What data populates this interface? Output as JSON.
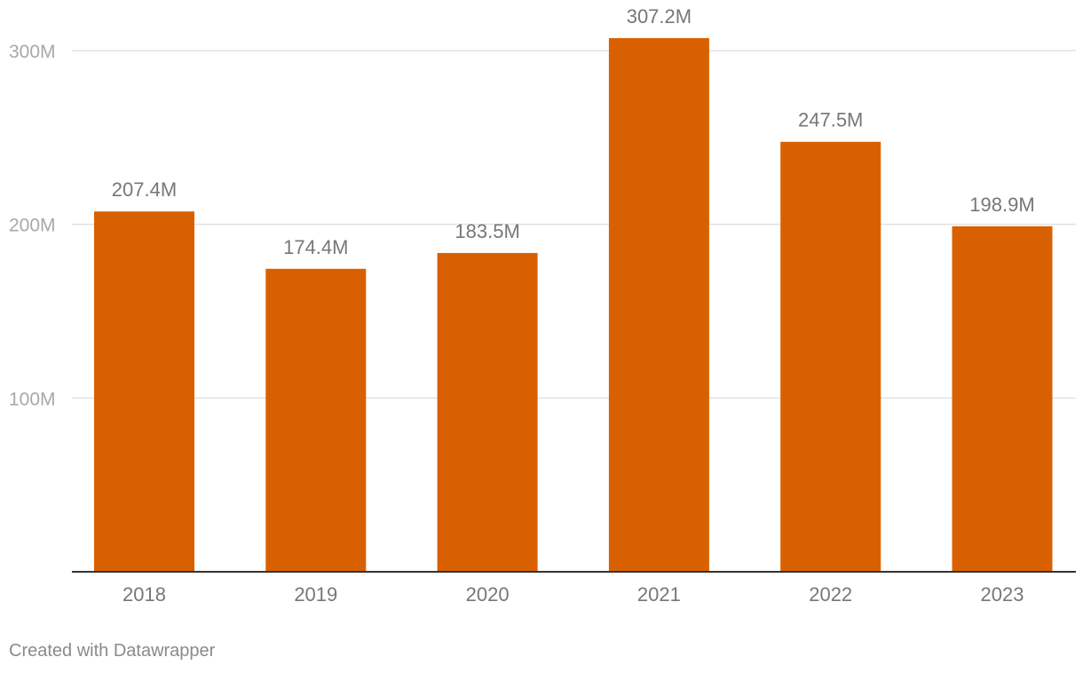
{
  "chart_data": {
    "type": "bar",
    "title": "",
    "xlabel": "",
    "ylabel": "",
    "categories": [
      "2018",
      "2019",
      "2020",
      "2021",
      "2022",
      "2023"
    ],
    "values": [
      207.4,
      174.4,
      183.5,
      307.2,
      247.5,
      198.9
    ],
    "value_labels": [
      "207.4M",
      "174.4M",
      "183.5M",
      "307.2M",
      "247.5M",
      "198.9M"
    ],
    "unit": "M",
    "ylim": [
      0,
      300
    ],
    "yticks": [
      100,
      200,
      300
    ],
    "ytick_labels": [
      "100M",
      "200M",
      "300M"
    ],
    "grid": true,
    "legend": "none",
    "bar_color": "#d96000"
  },
  "footer": {
    "credit": "Created with Datawrapper"
  },
  "colors": {
    "bar": "#d96000",
    "grid": "#e2e2e2",
    "axis": "#333333",
    "text": "#777777",
    "tick_text": "#a8a8a8"
  }
}
